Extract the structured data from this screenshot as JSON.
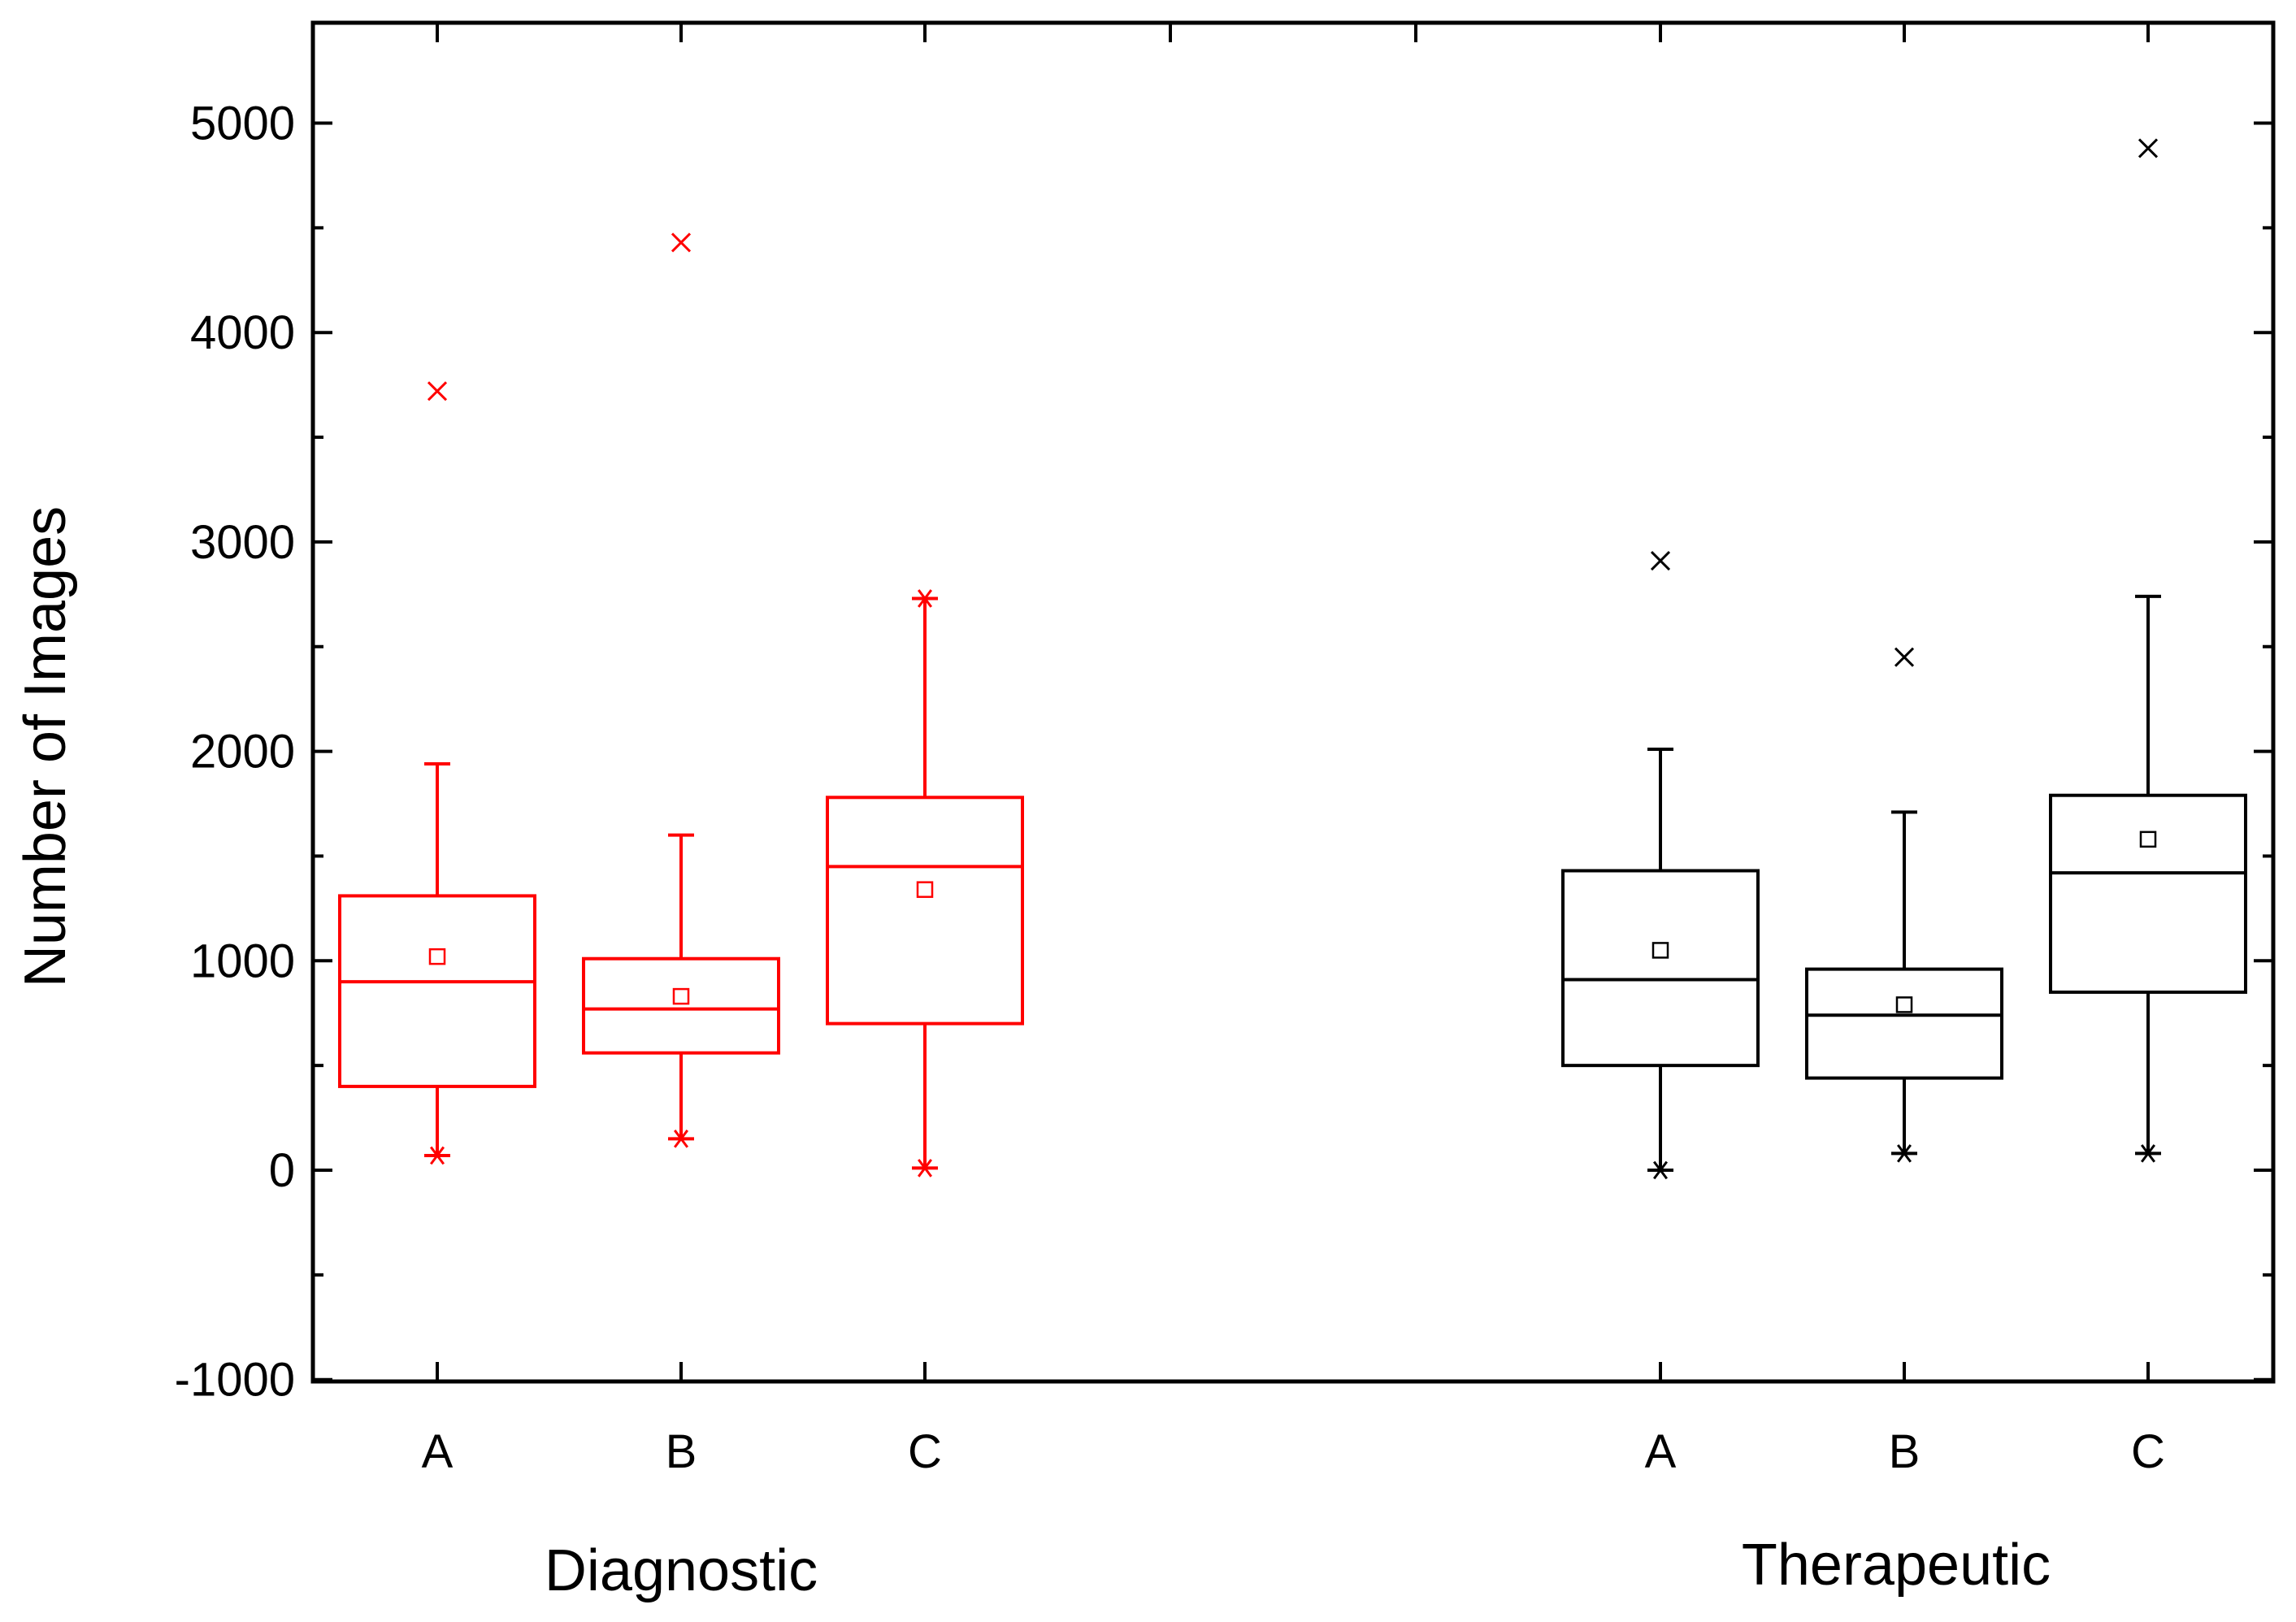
{
  "chart_data": {
    "type": "box",
    "title": "",
    "xlabel": "",
    "ylabel": "Number of Images",
    "ylim": [
      -1000,
      5500
    ],
    "yticks": [
      -1000,
      0,
      1000,
      2000,
      3000,
      4000,
      5000
    ],
    "ytick_labels": [
      "-1000",
      "0",
      "1000",
      "2000",
      "3000",
      "4000",
      "5000"
    ],
    "grid": false,
    "legend": "none",
    "groups": [
      {
        "name": "Diagnostic",
        "color": "#ff0000",
        "boxes": [
          {
            "label": "A",
            "whisker_low": 70,
            "q1": 400,
            "median": 900,
            "q3": 1310,
            "whisker_high": 1940,
            "mean": 1020,
            "min": 70,
            "max": 3720
          },
          {
            "label": "B",
            "whisker_low": 150,
            "q1": 560,
            "median": 770,
            "q3": 1010,
            "whisker_high": 1600,
            "mean": 830,
            "min": 150,
            "max": 4430
          },
          {
            "label": "C",
            "whisker_low": 10,
            "q1": 700,
            "median": 1450,
            "q3": 1780,
            "whisker_high": 2730,
            "mean": 1340,
            "min": 10,
            "max": 2730
          }
        ]
      },
      {
        "name": "Therapeutic",
        "color": "#000000",
        "boxes": [
          {
            "label": "A",
            "whisker_low": 0,
            "q1": 500,
            "median": 910,
            "q3": 1430,
            "whisker_high": 2010,
            "mean": 1050,
            "min": 0,
            "max": 2910
          },
          {
            "label": "B",
            "whisker_low": 80,
            "q1": 440,
            "median": 740,
            "q3": 960,
            "whisker_high": 1710,
            "mean": 790,
            "min": 80,
            "max": 2450
          },
          {
            "label": "C",
            "whisker_low": 80,
            "q1": 850,
            "median": 1420,
            "q3": 1790,
            "whisker_high": 2740,
            "mean": 1580,
            "min": 80,
            "max": 4880
          }
        ]
      }
    ]
  }
}
